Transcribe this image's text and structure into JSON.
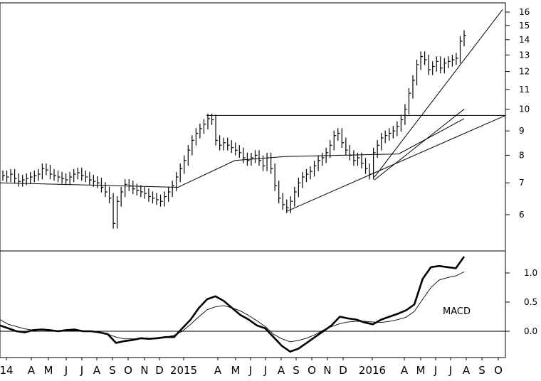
{
  "chart_data": [
    {
      "type": "ohlc",
      "panel": "price",
      "title": "",
      "y_scale": "log",
      "ylim": [
        5.3,
        16.8
      ],
      "y_ticks": [
        6,
        7,
        8,
        9,
        10,
        11,
        12,
        13,
        14,
        15,
        16
      ],
      "x_tick_labels": [
        "14",
        "A",
        "M",
        "J",
        "J",
        "A",
        "S",
        "O",
        "N",
        "D",
        "2015",
        "A",
        "M",
        "J",
        "J",
        "A",
        "S",
        "O",
        "N",
        "D",
        "2016",
        "A",
        "M",
        "J",
        "J",
        "A",
        "S",
        "O"
      ],
      "grid": false,
      "weekly_close": [
        7.25,
        7.2,
        7.3,
        7.15,
        7.05,
        7.1,
        7.15,
        7.2,
        7.25,
        7.3,
        7.5,
        7.45,
        7.3,
        7.25,
        7.2,
        7.15,
        7.1,
        7.2,
        7.3,
        7.35,
        7.25,
        7.2,
        7.1,
        7.05,
        7.0,
        6.85,
        6.7,
        6.5,
        5.75,
        6.4,
        6.7,
        6.95,
        6.9,
        6.8,
        6.75,
        6.7,
        6.65,
        6.55,
        6.5,
        6.45,
        6.4,
        6.55,
        6.7,
        6.9,
        7.2,
        7.5,
        7.8,
        8.2,
        8.6,
        8.9,
        9.1,
        9.3,
        9.55,
        9.5,
        8.6,
        8.4,
        8.5,
        8.4,
        8.3,
        8.2,
        8.1,
        7.9,
        7.8,
        7.9,
        8.0,
        7.8,
        7.6,
        7.9,
        7.5,
        6.9,
        6.5,
        6.3,
        6.2,
        6.4,
        6.7,
        7.0,
        7.2,
        7.3,
        7.4,
        7.6,
        7.8,
        7.9,
        8.1,
        8.4,
        8.8,
        8.9,
        8.5,
        8.2,
        8.0,
        7.8,
        7.9,
        7.7,
        7.5,
        7.3,
        8.1,
        8.4,
        8.7,
        8.8,
        8.9,
        9.0,
        9.2,
        9.5,
        10.0,
        10.8,
        11.5,
        12.4,
        12.9,
        12.7,
        12.1,
        12.3,
        12.6,
        12.2,
        12.5,
        12.6,
        12.7,
        12.8,
        13.9,
        14.3
      ],
      "moving_average_endpoints": [
        7.0,
        6.85,
        7.8,
        7.95,
        8.05,
        9.55
      ],
      "horizontal_resistance": 9.7,
      "trendlines": [
        {
          "from": [
            "2015-08",
            6.1
          ],
          "to": [
            "2016-10",
            9.7
          ]
        },
        {
          "from": [
            "2016-01",
            7.1
          ],
          "to": [
            "2016-07",
            10.0
          ]
        },
        {
          "from": [
            "2016-01",
            7.2
          ],
          "to": [
            "2016-10",
            16.2
          ]
        }
      ]
    },
    {
      "type": "line",
      "panel": "indicator",
      "annotation": "MACD",
      "ylim": [
        -0.35,
        1.35
      ],
      "y_ticks": [
        "0.0",
        "0.5",
        "1.0"
      ],
      "zero_line": true,
      "series": [
        {
          "style": "thick",
          "values": [
            0.1,
            0.05,
            0.0,
            -0.02,
            0.02,
            0.03,
            0.02,
            0.0,
            0.02,
            0.03,
            0.0,
            0.0,
            -0.02,
            -0.05,
            -0.2,
            -0.17,
            -0.15,
            -0.12,
            -0.13,
            -0.12,
            -0.1,
            -0.1,
            0.05,
            0.2,
            0.4,
            0.55,
            0.6,
            0.52,
            0.4,
            0.28,
            0.2,
            0.1,
            0.05,
            -0.1,
            -0.25,
            -0.35,
            -0.3,
            -0.2,
            -0.1,
            0.0,
            0.1,
            0.25,
            0.22,
            0.2,
            0.15,
            0.12,
            0.2,
            0.25,
            0.3,
            0.36,
            0.46,
            0.9,
            1.1,
            1.12,
            1.1,
            1.08,
            1.28
          ]
        },
        {
          "style": "thin",
          "values": [
            0.2,
            0.12,
            0.08,
            0.04,
            0.02,
            0.02,
            0.02,
            0.01,
            0.01,
            0.01,
            0.0,
            0.0,
            -0.01,
            -0.05,
            -0.1,
            -0.13,
            -0.13,
            -0.13,
            -0.13,
            -0.12,
            -0.1,
            -0.07,
            0.0,
            0.12,
            0.25,
            0.37,
            0.42,
            0.44,
            0.4,
            0.35,
            0.27,
            0.18,
            0.08,
            -0.05,
            -0.13,
            -0.18,
            -0.16,
            -0.12,
            -0.06,
            0.02,
            0.08,
            0.13,
            0.16,
            0.17,
            0.17,
            0.16,
            0.15,
            0.17,
            0.2,
            0.24,
            0.34,
            0.55,
            0.75,
            0.88,
            0.92,
            0.95,
            1.02
          ]
        }
      ]
    }
  ]
}
